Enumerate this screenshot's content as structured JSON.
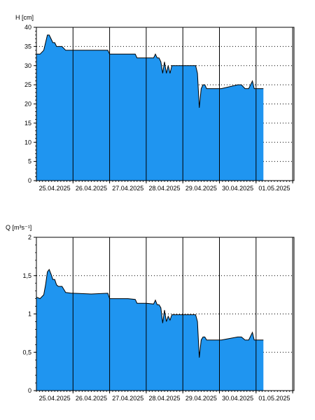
{
  "chart_data": [
    {
      "type": "area",
      "ylabel": "H [cm]",
      "ylim": [
        0,
        40
      ],
      "y_ticks": [
        0,
        5,
        10,
        15,
        20,
        25,
        30,
        35,
        40
      ],
      "y_tick_labels": [
        "0",
        "5",
        "10",
        "15",
        "20",
        "25",
        "30",
        "35",
        "40"
      ],
      "y_minor_step": 1,
      "x_range_days": [
        0,
        7.2
      ],
      "x_ticks": [
        "25.04.2025",
        "26.04.2025",
        "27.04.2025",
        "28.04.2025",
        "29.04.2025",
        "30.04.2025",
        "01.05.2025"
      ],
      "grid": true,
      "fill_color": "#1f95f0",
      "line_color": "#000000",
      "series": [
        {
          "x": [
            0,
            0.1,
            0.2,
            0.25,
            0.3,
            0.35,
            0.4,
            0.45,
            0.5,
            0.55,
            0.6,
            0.7,
            0.8,
            0.95,
            1.0,
            1.5,
            1.95,
            2.0,
            2.5,
            2.7,
            2.75,
            2.95,
            3.0,
            3.2,
            3.25,
            3.3,
            3.35,
            3.4,
            3.45,
            3.5,
            3.55,
            3.6,
            3.65,
            3.7,
            3.75,
            3.8,
            4.35,
            4.4,
            4.45,
            4.5,
            4.55,
            4.6,
            4.65,
            4.7,
            4.75,
            5.0,
            5.5,
            5.05,
            5.6,
            5.7,
            5.75,
            5.8,
            5.9,
            5.95,
            6.0,
            6.2
          ],
          "y": [
            33,
            33,
            34,
            36,
            38,
            38,
            37,
            36,
            36,
            35,
            35,
            35,
            34,
            34,
            34,
            34,
            34,
            33,
            33,
            33,
            32,
            32,
            32,
            32,
            33,
            32,
            32,
            31,
            28,
            31,
            28,
            30,
            28,
            30,
            30,
            30,
            30,
            28,
            19,
            24,
            25,
            25,
            24,
            24,
            24,
            24,
            25,
            24,
            25,
            24,
            24,
            24,
            26,
            24,
            24,
            24
          ]
        }
      ]
    },
    {
      "type": "area",
      "ylabel": "Q [m³s⁻¹]",
      "ylim": [
        0,
        2
      ],
      "y_ticks": [
        0,
        0.5,
        1,
        1.5,
        2
      ],
      "y_tick_labels": [
        "0",
        "0,5",
        "1",
        "1,5",
        "2"
      ],
      "y_minor_step": 0.1,
      "x_range_days": [
        0,
        7.2
      ],
      "x_ticks": [
        "25.04.2025",
        "26.04.2025",
        "27.04.2025",
        "28.04.2025",
        "29.04.2025",
        "30.04.2025",
        "01.05.2025"
      ],
      "grid": true,
      "fill_color": "#1f95f0",
      "line_color": "#000000",
      "series": [
        {
          "x": [
            0,
            0.1,
            0.2,
            0.25,
            0.3,
            0.35,
            0.4,
            0.45,
            0.5,
            0.55,
            0.6,
            0.7,
            0.8,
            0.95,
            1.0,
            1.5,
            1.95,
            2.0,
            2.5,
            2.7,
            2.75,
            2.95,
            3.0,
            3.2,
            3.25,
            3.3,
            3.35,
            3.4,
            3.45,
            3.5,
            3.55,
            3.6,
            3.65,
            3.7,
            3.75,
            3.8,
            4.35,
            4.4,
            4.45,
            4.5,
            4.55,
            4.6,
            4.65,
            4.7,
            4.75,
            5.0,
            5.5,
            5.05,
            5.6,
            5.7,
            5.75,
            5.8,
            5.9,
            5.95,
            6.0,
            6.2
          ],
          "y": [
            1.22,
            1.2,
            1.25,
            1.38,
            1.55,
            1.58,
            1.52,
            1.45,
            1.45,
            1.38,
            1.36,
            1.36,
            1.28,
            1.27,
            1.27,
            1.26,
            1.27,
            1.2,
            1.2,
            1.19,
            1.14,
            1.14,
            1.14,
            1.13,
            1.18,
            1.12,
            1.12,
            1.08,
            0.88,
            1.05,
            0.9,
            0.97,
            0.92,
            0.99,
            0.99,
            0.99,
            0.99,
            0.9,
            0.43,
            0.66,
            0.7,
            0.7,
            0.66,
            0.66,
            0.66,
            0.66,
            0.7,
            0.66,
            0.7,
            0.66,
            0.66,
            0.66,
            0.76,
            0.66,
            0.66,
            0.66
          ]
        }
      ]
    }
  ]
}
